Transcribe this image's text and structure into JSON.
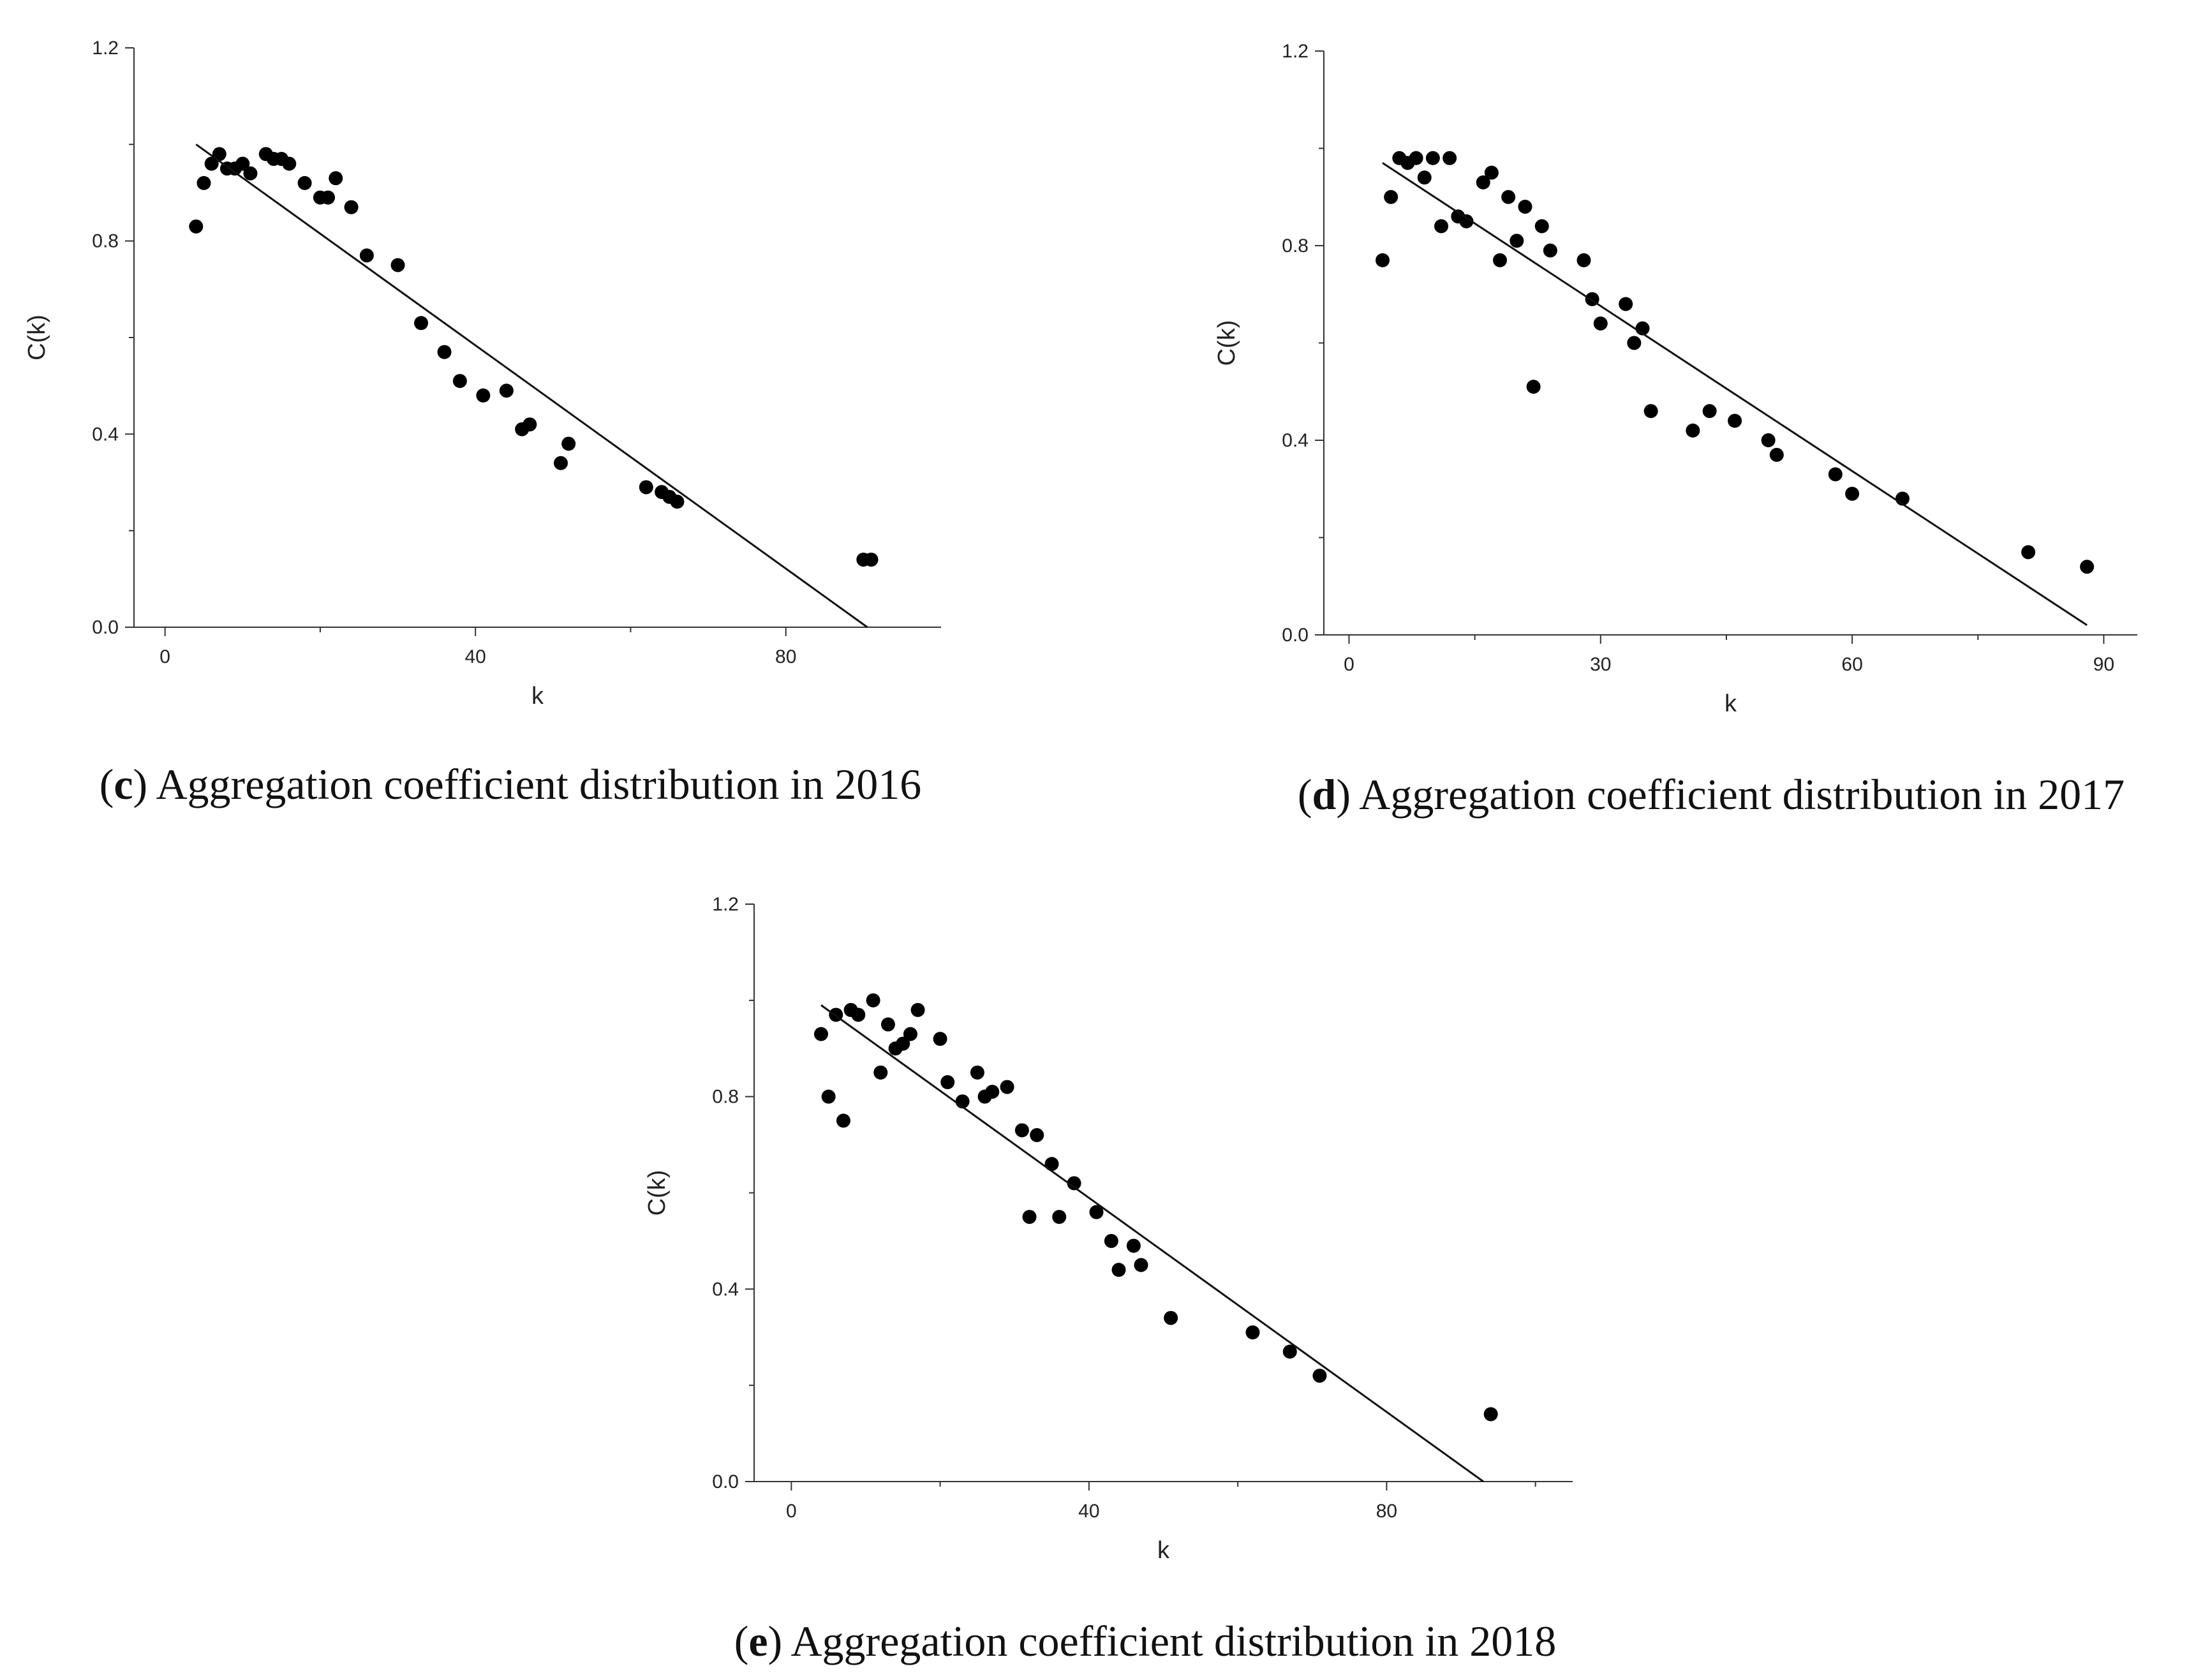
{
  "chart_data": [
    {
      "id": "c",
      "type": "scatter",
      "title": "",
      "xlabel": "k",
      "ylabel": "C(k)",
      "xlim": [
        -4,
        100
      ],
      "ylim": [
        0,
        1.2
      ],
      "xticks": [
        "0",
        "40",
        "80"
      ],
      "xtick_values": [
        0,
        40,
        80
      ],
      "yticks": [
        "0.0",
        "0.4",
        "0.8",
        "1.2"
      ],
      "ytick_values": [
        0,
        0.4,
        0.8,
        1.2
      ],
      "caption": {
        "letter": "c",
        "text": "Aggregation coefficient distribution in 2016"
      },
      "x": [
        4,
        5,
        6,
        7,
        8,
        9,
        10,
        11,
        13,
        14,
        15,
        16,
        18,
        20,
        21,
        22,
        24,
        26,
        30,
        33,
        36,
        38,
        41,
        44,
        46,
        47,
        51,
        52,
        62,
        64,
        65,
        66,
        90,
        91
      ],
      "y": [
        0.83,
        0.92,
        0.96,
        0.98,
        0.95,
        0.95,
        0.96,
        0.94,
        0.98,
        0.97,
        0.97,
        0.96,
        0.92,
        0.89,
        0.89,
        0.93,
        0.87,
        0.77,
        0.75,
        0.63,
        0.57,
        0.51,
        0.48,
        0.49,
        0.41,
        0.42,
        0.34,
        0.38,
        0.29,
        0.28,
        0.27,
        0.26,
        0.14,
        0.14
      ],
      "fit_line": {
        "x": [
          4,
          90.5
        ],
        "y": [
          1.0,
          0.0
        ]
      }
    },
    {
      "id": "d",
      "type": "scatter",
      "title": "",
      "xlabel": "k",
      "ylabel": "C(k)",
      "xlim": [
        -3,
        94
      ],
      "ylim": [
        0,
        1.2
      ],
      "xticks": [
        "0",
        "30",
        "60",
        "90"
      ],
      "xtick_values": [
        0,
        30,
        60,
        90
      ],
      "yticks": [
        "0.0",
        "0.4",
        "0.8",
        "1.2"
      ],
      "ytick_values": [
        0,
        0.4,
        0.8,
        1.2
      ],
      "caption": {
        "letter": "d",
        "text": "Aggregation coefficient distribution in 2017"
      },
      "x": [
        4,
        5,
        6,
        7,
        8,
        9,
        10,
        11,
        12,
        13,
        14,
        16,
        17,
        18,
        19,
        20,
        21,
        22,
        23,
        24,
        28,
        29,
        30,
        33,
        34,
        35,
        36,
        41,
        43,
        46,
        50,
        51,
        58,
        60,
        66,
        81,
        88
      ],
      "y": [
        0.77,
        0.9,
        0.98,
        0.97,
        0.98,
        0.94,
        0.98,
        0.84,
        0.98,
        0.86,
        0.85,
        0.93,
        0.95,
        0.77,
        0.9,
        0.81,
        0.88,
        0.51,
        0.84,
        0.79,
        0.77,
        0.69,
        0.64,
        0.68,
        0.6,
        0.63,
        0.46,
        0.42,
        0.46,
        0.44,
        0.4,
        0.37,
        0.33,
        0.29,
        0.28,
        0.17,
        0.14
      ],
      "fit_line": {
        "x": [
          4,
          88
        ],
        "y": [
          0.97,
          0.02
        ]
      }
    },
    {
      "id": "e",
      "type": "scatter",
      "title": "",
      "xlabel": "k",
      "ylabel": "C(k)",
      "xlim": [
        -5,
        105
      ],
      "ylim": [
        0,
        1.2
      ],
      "xticks": [
        "0",
        "40",
        "80"
      ],
      "xtick_values": [
        0,
        40,
        80
      ],
      "yticks": [
        "0.0",
        "0.4",
        "0.8",
        "1.2"
      ],
      "ytick_values": [
        0,
        0.4,
        0.8,
        1.2
      ],
      "caption": {
        "letter": "e",
        "text": "Aggregation coefficient distribution in 2018"
      },
      "x": [
        4,
        5,
        6,
        7,
        8,
        9,
        11,
        12,
        13,
        14,
        15,
        16,
        17,
        20,
        21,
        23,
        25,
        26,
        27,
        29,
        31,
        32,
        33,
        35,
        36,
        38,
        41,
        43,
        44,
        46,
        47,
        51,
        62,
        67,
        71,
        94
      ],
      "y": [
        0.93,
        0.8,
        0.97,
        0.75,
        0.98,
        0.97,
        1.0,
        0.85,
        0.95,
        0.9,
        0.91,
        0.93,
        0.98,
        0.92,
        0.83,
        0.79,
        0.85,
        0.8,
        0.81,
        0.82,
        0.73,
        0.55,
        0.72,
        0.66,
        0.55,
        0.62,
        0.56,
        0.5,
        0.44,
        0.49,
        0.45,
        0.34,
        0.31,
        0.27,
        0.22,
        0.14
      ],
      "fit_line": {
        "x": [
          4,
          93
        ],
        "y": [
          0.99,
          0.0
        ]
      }
    }
  ]
}
